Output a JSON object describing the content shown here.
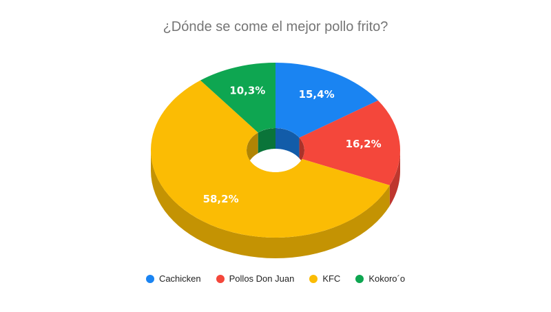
{
  "chart_data": {
    "type": "pie",
    "title": "¿Dónde se come el mejor pollo frito?",
    "categories": [
      "Cachicken",
      "Pollos Don Juan",
      "KFC",
      "Kokoro´o"
    ],
    "values": [
      15.4,
      16.2,
      58.2,
      10.3
    ],
    "labels": [
      "15,4%",
      "16,2%",
      "58,2%",
      "10,3%"
    ],
    "colors": [
      "#1a84f2",
      "#f4473b",
      "#fbbc04",
      "#0ea651"
    ],
    "legend_position": "bottom",
    "style": "3D donut"
  }
}
